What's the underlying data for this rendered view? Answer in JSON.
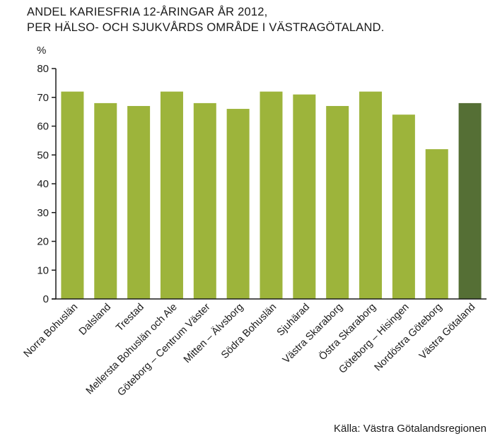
{
  "title_lines": [
    "ANDEL KARIESFRIA 12-ÅRINGAR ÅR 2012,",
    "PER HÄLSO- OCH SJUKVÅRDS OMRÅDE I VÄSTRAGÖTALAND."
  ],
  "source": "Källa: Västra Götalandsregionen",
  "colors": {
    "bar": "#9db43b",
    "highlight": "#556f35",
    "axis": "#1a1a1a"
  },
  "chart_data": {
    "type": "bar",
    "title": "ANDEL KARIESFRIA 12-ÅRINGAR ÅR 2012, PER HÄLSO- OCH SJUKVÅRDS OMRÅDE I VÄSTRAGÖTALAND.",
    "xlabel": "",
    "ylabel": "%",
    "ylim": [
      0,
      80
    ],
    "yticks": [
      0,
      10,
      20,
      30,
      40,
      50,
      60,
      70,
      80
    ],
    "grid": false,
    "categories": [
      "Norra Bohuslän",
      "Dalsland",
      "Trestad",
      "Mellersta Bohuslän och Ale",
      "Göteborg – Centrum Väster",
      "Mitten – Älvsborg",
      "Södra Bohuslän",
      "Sjuhärad",
      "Västra Skaraborg",
      "Östra Skaraborg",
      "Göteborg – Hisingen",
      "Nordöstra Göteborg",
      "Västra Götaland"
    ],
    "values": [
      72,
      68,
      67,
      72,
      68,
      66,
      72,
      71,
      67,
      72,
      64,
      52,
      68
    ],
    "highlight_category": "Västra Götaland"
  }
}
